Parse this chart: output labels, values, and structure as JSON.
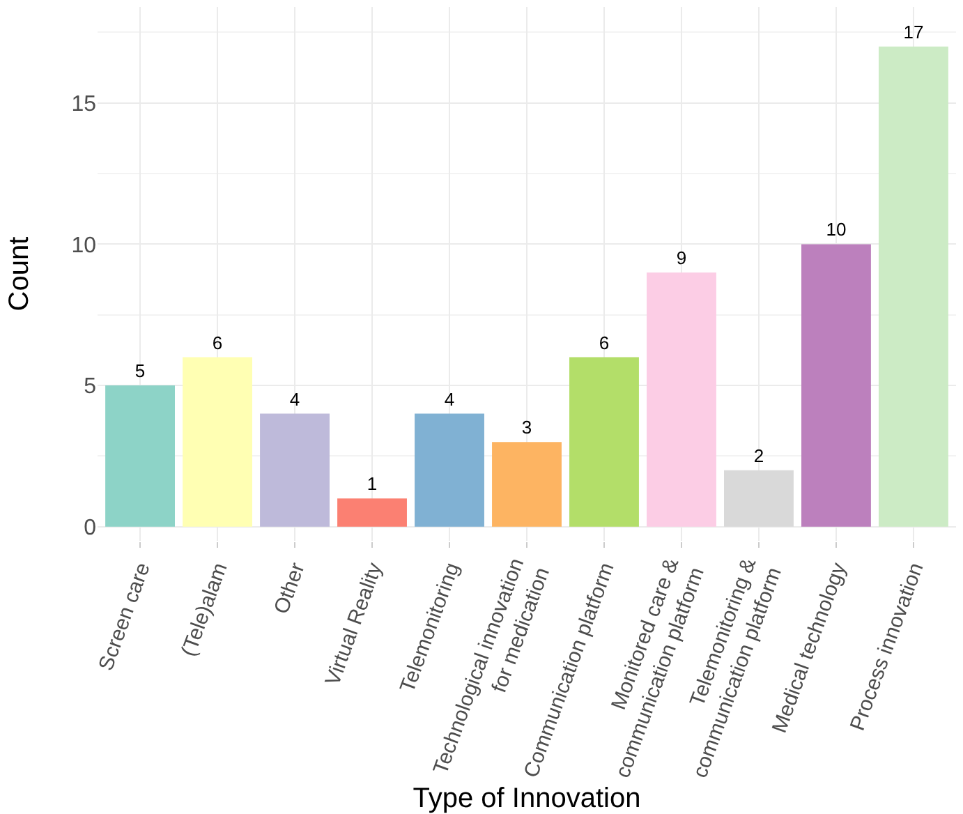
{
  "chart_data": {
    "type": "bar",
    "xlabel": "Type of Innovation",
    "ylabel": "Count",
    "categories": [
      "Screen care",
      "(Tele)alam",
      "Other",
      "Virtual Reality",
      "Telemonitoring",
      "Technological innovation\nfor medication",
      "Communication platform",
      "Monitored care &\ncommunication platform",
      "Telemonitoring &\ncommunication platform",
      "Medical technology",
      "Process innovation"
    ],
    "values": [
      5,
      6,
      4,
      1,
      4,
      3,
      6,
      9,
      2,
      10,
      17
    ],
    "colors": [
      "#8dd3c7",
      "#ffffb3",
      "#bebada",
      "#fb8072",
      "#80b1d3",
      "#fdb462",
      "#b3de69",
      "#fccde5",
      "#d9d9d9",
      "#bc80bd",
      "#ccebc5"
    ],
    "ylim": [
      -0.5,
      18.4
    ],
    "yticks": [
      0,
      5,
      10,
      15
    ],
    "grid": true,
    "data_labels": true
  }
}
